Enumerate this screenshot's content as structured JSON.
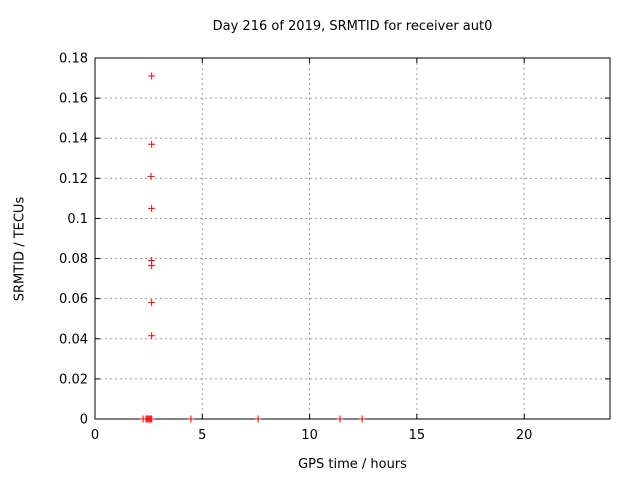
{
  "window": {
    "background": "#ffffff"
  },
  "chart_data": {
    "type": "scatter",
    "title": "Day 216 of 2019, SRMTID for receiver aut0",
    "xlabel": "GPS time / hours",
    "ylabel": "SRMTID / TECUs",
    "xlim": [
      0,
      24
    ],
    "ylim": [
      0,
      0.18
    ],
    "xticks": {
      "values": [
        0,
        5,
        10,
        15,
        20
      ],
      "labels": [
        "0",
        "5",
        "10",
        "15",
        "20"
      ]
    },
    "yticks": {
      "values": [
        0,
        0.02,
        0.04,
        0.06,
        0.08,
        0.1,
        0.12,
        0.14,
        0.16,
        0.18
      ],
      "labels": [
        "0",
        "0.02",
        "0.04",
        "0.06",
        "0.08",
        "0.1",
        "0.12",
        "0.14",
        "0.16",
        "0.18"
      ]
    },
    "grid": true,
    "legend": "none",
    "colors": {
      "axis": "#000000",
      "grid": "#a0a0a0",
      "text": "#000000",
      "marker": "#ff0000"
    },
    "series": [
      {
        "name": "SRMTID",
        "marker": "plus",
        "color": "#ff0000",
        "points": [
          [
            2.64,
            0.171
          ],
          [
            2.64,
            0.137
          ],
          [
            2.61,
            0.121
          ],
          [
            2.64,
            0.105
          ],
          [
            2.64,
            0.079
          ],
          [
            2.64,
            0.0765
          ],
          [
            2.64,
            0.058
          ],
          [
            2.64,
            0.0415
          ],
          [
            2.24,
            0
          ],
          [
            2.38,
            0
          ],
          [
            2.43,
            0
          ],
          [
            2.48,
            0
          ],
          [
            2.53,
            0
          ],
          [
            2.58,
            0
          ],
          [
            2.64,
            0
          ],
          [
            4.47,
            0
          ],
          [
            7.6,
            0
          ],
          [
            11.42,
            0
          ],
          [
            12.45,
            0
          ]
        ]
      }
    ]
  }
}
